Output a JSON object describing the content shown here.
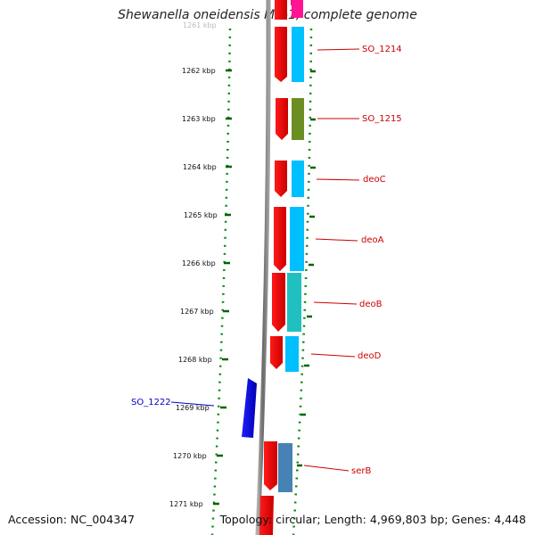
{
  "title": "Shewanella oneidensis MR-1, complete genome",
  "accession_text": "Accession: NC_004347",
  "topology_text": "Topology: circular; Length: 4,969,803 bp; Genes: 4,448",
  "kbp_scale": {
    "first_label": "1261 kbp",
    "labels": [
      "1262 kbp",
      "1263 kbp",
      "1264 kbp",
      "1265 kbp",
      "1266 kbp",
      "1267 kbp",
      "1268 kbp",
      "1269 kbp",
      "1270 kbp",
      "1271 kbp"
    ]
  },
  "genes": [
    {
      "name": "SO_1214",
      "color": "#cc0000",
      "cog_color": "#00bfff",
      "strand": "forward"
    },
    {
      "name": "SO_1215",
      "color": "#cc0000",
      "cog_color": "#6b8e23",
      "strand": "forward"
    },
    {
      "name": "deoC",
      "color": "#cc0000",
      "cog_color": "#00bfff",
      "strand": "forward"
    },
    {
      "name": "deoA",
      "color": "#cc0000",
      "cog_color": "#00bfff",
      "strand": "forward"
    },
    {
      "name": "deoB",
      "color": "#cc0000",
      "cog_color": "#20c0c0",
      "strand": "forward"
    },
    {
      "name": "deoD",
      "color": "#cc0000",
      "cog_color": "#00bfff",
      "strand": "forward"
    },
    {
      "name": "SO_1222",
      "color": "#0000cc",
      "strand": "reverse"
    },
    {
      "name": "serB",
      "color": "#cc0000",
      "cog_color": "#4682b4",
      "strand": "forward"
    }
  ],
  "colors": {
    "forward_label": "#cc0000",
    "reverse_label": "#0000cc",
    "backbone": "#808080",
    "ticks": "#006400"
  }
}
